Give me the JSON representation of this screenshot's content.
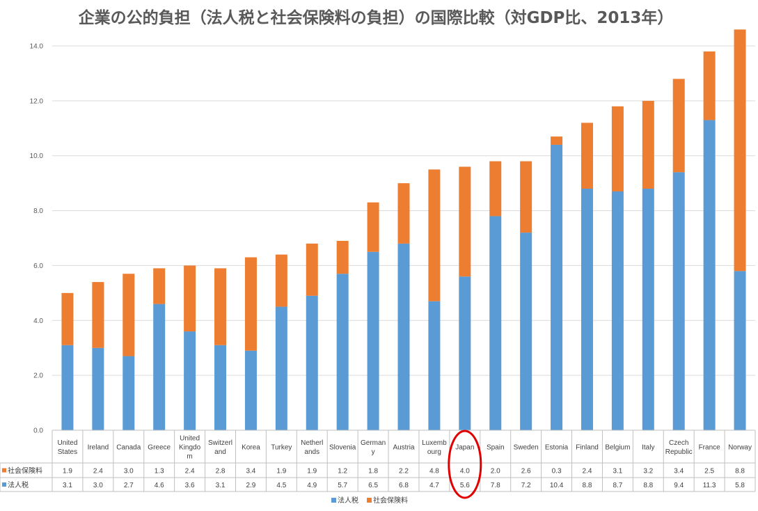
{
  "chart_data": {
    "type": "bar",
    "stacked": true,
    "title": "企業の公的負担（法人税と社会保険料の負担）の国際比較（対GDP比、2013年）",
    "categories": [
      [
        "United",
        "States"
      ],
      [
        "Ireland"
      ],
      [
        "Canada"
      ],
      [
        "Greece"
      ],
      [
        "United",
        "Kingdo",
        "m"
      ],
      [
        "Switzerl",
        "and"
      ],
      [
        "Korea"
      ],
      [
        "Turkey"
      ],
      [
        "Netherl",
        "ands"
      ],
      [
        "Slovenia"
      ],
      [
        "German",
        "y"
      ],
      [
        "Austria"
      ],
      [
        "Luxemb",
        "ourg"
      ],
      [
        "Japan"
      ],
      [
        "Spain"
      ],
      [
        "Sweden"
      ],
      [
        "Estonia"
      ],
      [
        "Finland"
      ],
      [
        "Belgium"
      ],
      [
        "Italy"
      ],
      [
        "Czech",
        "Republic"
      ],
      [
        "France"
      ],
      [
        "Norway"
      ]
    ],
    "series": [
      {
        "name": "法人税",
        "color": "#5b9bd5",
        "values": [
          3.1,
          3.0,
          2.7,
          4.6,
          3.6,
          3.1,
          2.9,
          4.5,
          4.9,
          5.7,
          6.5,
          6.8,
          4.7,
          5.6,
          7.8,
          7.2,
          10.4,
          8.8,
          8.7,
          8.8,
          9.4,
          11.3,
          5.8
        ]
      },
      {
        "name": "社会保険料",
        "color": "#ed7d31",
        "values": [
          1.9,
          2.4,
          3.0,
          1.3,
          2.4,
          2.8,
          3.4,
          1.9,
          1.9,
          1.2,
          1.8,
          2.2,
          4.8,
          4.0,
          2.0,
          2.6,
          0.3,
          2.4,
          3.1,
          3.2,
          3.4,
          2.5,
          8.8
        ]
      }
    ],
    "ylim": [
      0,
      14.0
    ],
    "yticks": [
      "0.0",
      "2.0",
      "4.0",
      "6.0",
      "8.0",
      "10.0",
      "12.0",
      "14.0"
    ],
    "table_rows": [
      {
        "label": "社会保険料",
        "color": "#ed7d31",
        "values": [
          "1.9",
          "2.4",
          "3.0",
          "1.3",
          "2.4",
          "2.8",
          "3.4",
          "1.9",
          "1.9",
          "1.2",
          "1.8",
          "2.2",
          "4.8",
          "4.0",
          "2.0",
          "2.6",
          "0.3",
          "2.4",
          "3.1",
          "3.2",
          "3.4",
          "2.5",
          "8.8"
        ]
      },
      {
        "label": "法人税",
        "color": "#5b9bd5",
        "values": [
          "3.1",
          "3.0",
          "2.7",
          "4.6",
          "3.6",
          "3.1",
          "2.9",
          "4.5",
          "4.9",
          "5.7",
          "6.5",
          "6.8",
          "4.7",
          "5.6",
          "7.8",
          "7.2",
          "10.4",
          "8.8",
          "8.7",
          "8.8",
          "9.4",
          "11.3",
          "5.8"
        ]
      }
    ],
    "legend": [
      {
        "label": "法人税",
        "color": "#5b9bd5"
      },
      {
        "label": "社会保険料",
        "color": "#ed7d31"
      }
    ],
    "legend_position": "bottom",
    "grid": true,
    "highlight": {
      "category": "Japan",
      "color": "#e00000",
      "shape": "ellipse"
    }
  }
}
